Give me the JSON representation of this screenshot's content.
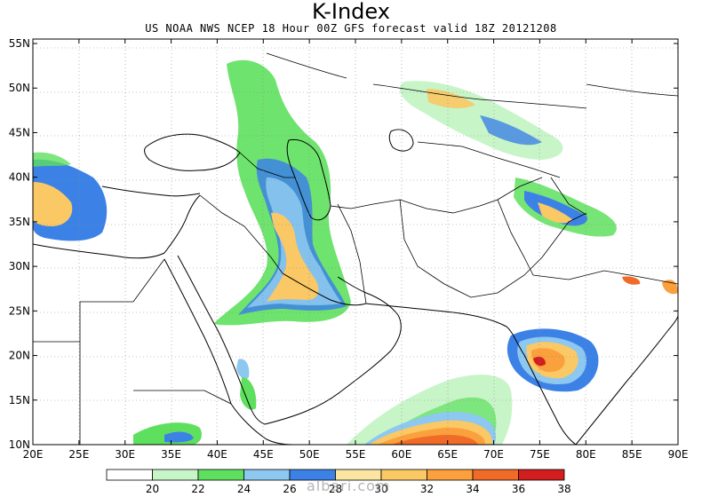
{
  "title": "K-Index",
  "subtitle": "US NOAA NWS NCEP 18 Hour 00Z GFS forecast valid 18Z 20121208",
  "watermark": "albari.com",
  "axes": {
    "lat_labels": [
      "55N",
      "50N",
      "45N",
      "40N",
      "35N",
      "30N",
      "25N",
      "20N",
      "15N",
      "10N"
    ],
    "lon_labels": [
      "20E",
      "25E",
      "30E",
      "35E",
      "40E",
      "45E",
      "50E",
      "55E",
      "60E",
      "65E",
      "70E",
      "75E",
      "80E",
      "85E",
      "90E"
    ]
  },
  "legend": {
    "labels": [
      "20",
      "22",
      "24",
      "26",
      "28",
      "30",
      "32",
      "34",
      "36",
      "38"
    ],
    "colors": [
      "#ffffff",
      "#c8f5c8",
      "#5ee05e",
      "#8cc8f0",
      "#3c82e6",
      "#fae6a0",
      "#fac864",
      "#faa03c",
      "#f06a28",
      "#d21e1e"
    ]
  },
  "colors": {
    "green_light": "#c8f5c8",
    "green": "#5ee05e",
    "blue_light": "#8cc8f0",
    "blue": "#3c82e6",
    "yellow_light": "#fae6a0",
    "yellow": "#fac864",
    "orange": "#faa03c",
    "orange_dark": "#f06a28",
    "red": "#d21e1e"
  }
}
